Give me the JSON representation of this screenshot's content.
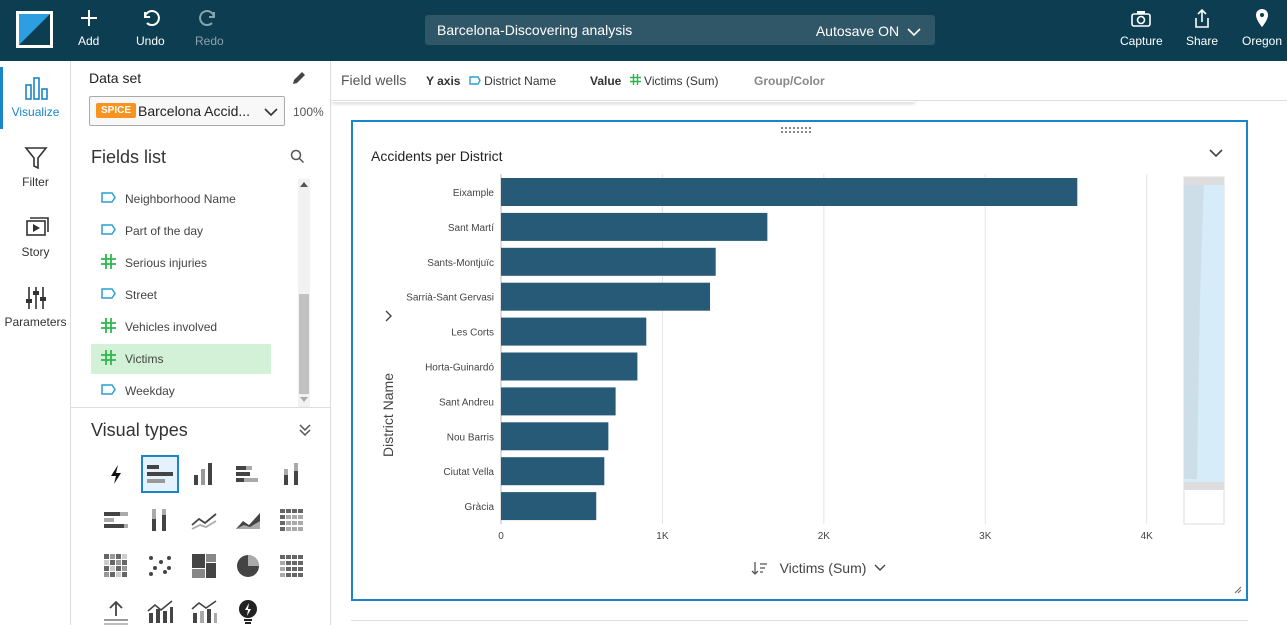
{
  "topbar": {
    "add_label": "Add",
    "undo_label": "Undo",
    "redo_label": "Redo",
    "analysis_title": "Barcelona-Discovering analysis",
    "autosave_label": "Autosave ON",
    "capture_label": "Capture",
    "share_label": "Share",
    "region_label": "Oregon"
  },
  "rail": {
    "visualize": "Visualize",
    "filter": "Filter",
    "story": "Story",
    "parameters": "Parameters"
  },
  "dataset": {
    "label": "Data set",
    "badge": "SPICE",
    "name": "Barcelona Accid...",
    "percent": "100%"
  },
  "fields_list": {
    "title": "Fields list",
    "items": [
      {
        "label": "Neighborhood Name",
        "type": "dimension"
      },
      {
        "label": "Part of the day",
        "type": "dimension"
      },
      {
        "label": "Serious injuries",
        "type": "measure"
      },
      {
        "label": "Street",
        "type": "dimension"
      },
      {
        "label": "Vehicles involved",
        "type": "measure"
      },
      {
        "label": "Victims",
        "type": "measure",
        "selected": true
      },
      {
        "label": "Weekday",
        "type": "dimension"
      }
    ]
  },
  "visual_types": {
    "title": "Visual types"
  },
  "field_wells": {
    "label": "Field wells",
    "y_axis_label": "Y axis",
    "y_axis_field": "District Name",
    "value_label": "Value",
    "value_field": "Victims (Sum)",
    "group_label": "Group/Color"
  },
  "colors": {
    "topbar": "#0d3d50",
    "accent": "#1a86c9",
    "bar": "#265a76",
    "measure": "#2db84d",
    "dimension": "#2a9fd6"
  },
  "visual": {
    "title": "Accidents per District",
    "y_axis_title": "District Name",
    "x_axis_title": "Victims (Sum)"
  },
  "chart_data": {
    "type": "bar",
    "orientation": "horizontal",
    "title": "Accidents per District",
    "ylabel": "District Name",
    "xlabel": "Victims (Sum)",
    "categories": [
      "Eixample",
      "Sant Martí",
      "Sants-Montjuïc",
      "Sarrià-Sant Gervasi",
      "Les Corts",
      "Horta-Guinardó",
      "Sant Andreu",
      "Nou Barris",
      "Ciutat Vella",
      "Gràcia"
    ],
    "values": [
      3570,
      1650,
      1330,
      1295,
      900,
      845,
      710,
      665,
      640,
      590
    ],
    "xlim": [
      0,
      4200
    ],
    "ticks": [
      0,
      1000,
      2000,
      3000,
      4000
    ],
    "tick_labels": [
      "0",
      "1K",
      "2K",
      "3K",
      "4K"
    ],
    "grid": true
  }
}
